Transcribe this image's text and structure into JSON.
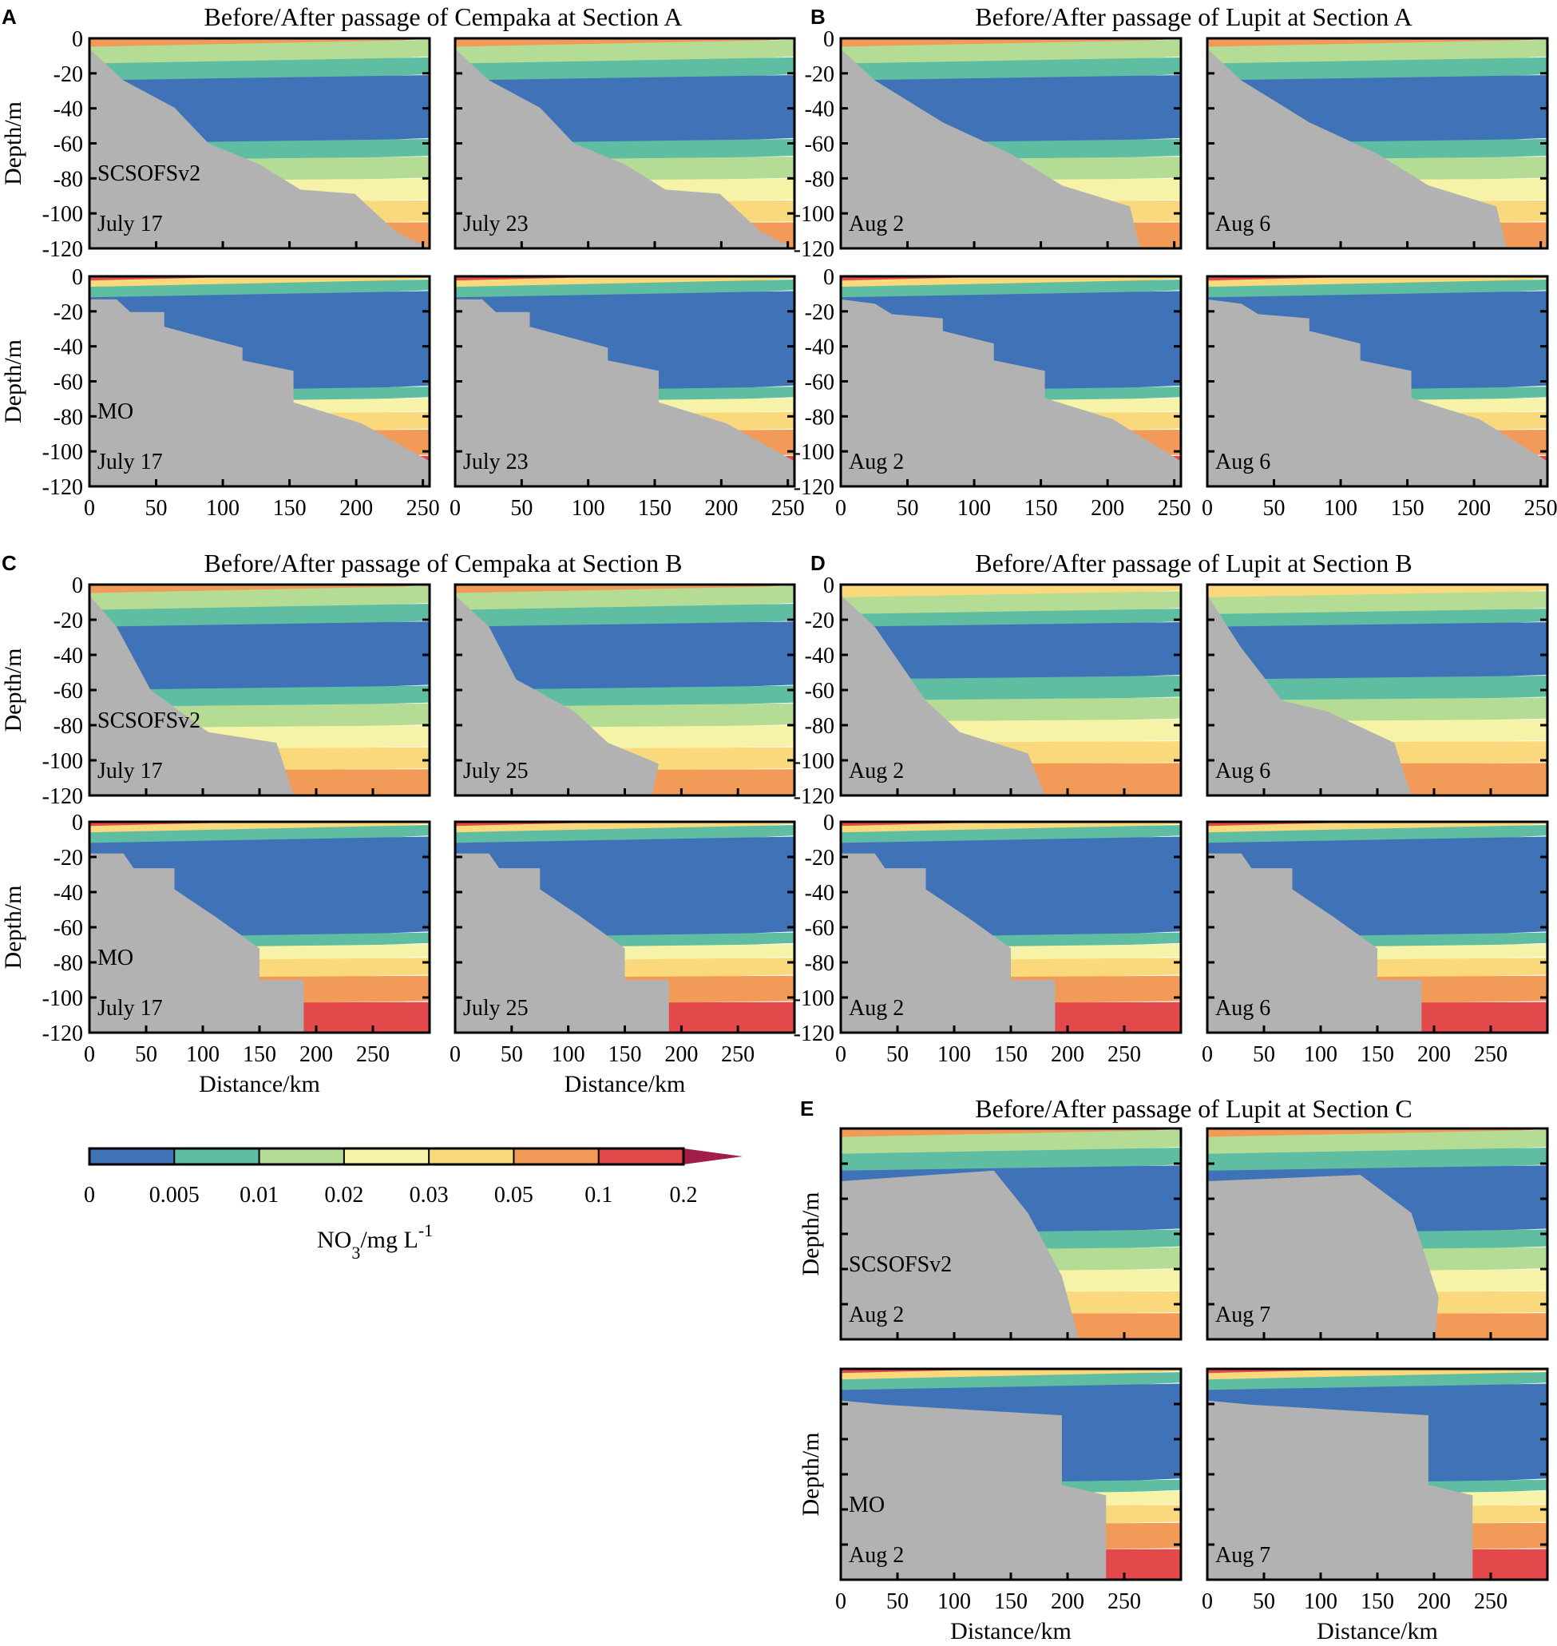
{
  "chart_data": {
    "type": "contour-section",
    "variable": "NO3",
    "colorbar": {
      "levels": [
        "0",
        "0.005",
        "0.01",
        "0.02",
        "0.03",
        "0.05",
        "0.1",
        "0.2"
      ],
      "colors": [
        "#3f72b6",
        "#5fbda1",
        "#b5dc95",
        "#f6f3a8",
        "#fad97d",
        "#f29b58",
        "#e3494a"
      ],
      "extend_color": "#a11d48",
      "label_main": "NO",
      "label_sub": "3",
      "label_unit": "/mg L",
      "label_sup": "-1"
    },
    "axes": {
      "ylabel": "Depth/m",
      "xlabel": "Distance/km",
      "depth_ticks": [
        "0",
        "-20",
        "-40",
        "-60",
        "-80",
        "-100",
        "-120"
      ],
      "dist_ticks_250": [
        "0",
        "50",
        "100",
        "150",
        "200",
        "250"
      ],
      "dist_ticks_300": [
        "0",
        "50",
        "100",
        "150",
        "200",
        "250"
      ]
    },
    "groups": [
      {
        "id": "A",
        "title": "Before/After passage of Cempaka at Section A",
        "xmax": 255,
        "ymin": -120,
        "panels": [
          {
            "model": "SCSOFSv2",
            "date": "July 17"
          },
          {
            "model": "",
            "date": "July 23"
          },
          {
            "model": "MO",
            "date": "July 17"
          },
          {
            "model": "",
            "date": "July 23"
          }
        ]
      },
      {
        "id": "B",
        "title": "Before/After passage of Lupit at Section A",
        "xmax": 255,
        "ymin": -120,
        "panels": [
          {
            "model": "",
            "date": "Aug 2"
          },
          {
            "model": "",
            "date": "Aug 6"
          },
          {
            "model": "",
            "date": "Aug 2"
          },
          {
            "model": "",
            "date": "Aug 6"
          }
        ]
      },
      {
        "id": "C",
        "title": "Before/After passage of Cempaka at Section B",
        "xmax": 300,
        "ymin": -120,
        "panels": [
          {
            "model": "SCSOFSv2",
            "date": "July 17"
          },
          {
            "model": "",
            "date": "July 25"
          },
          {
            "model": "MO",
            "date": "July 17"
          },
          {
            "model": "",
            "date": "July 25"
          }
        ]
      },
      {
        "id": "D",
        "title": "Before/After passage of Lupit at Section B",
        "xmax": 300,
        "ymin": -120,
        "panels": [
          {
            "model": "",
            "date": "Aug 2"
          },
          {
            "model": "",
            "date": "Aug 6"
          },
          {
            "model": "",
            "date": "Aug 2"
          },
          {
            "model": "",
            "date": "Aug 6"
          }
        ]
      },
      {
        "id": "E",
        "title": "Before/After passage of Lupit at Section C",
        "xmax": 300,
        "ymin": -120,
        "panels": [
          {
            "model": "SCSOFSv2",
            "date": "Aug 2"
          },
          {
            "model": "",
            "date": "Aug 7"
          },
          {
            "model": "MO",
            "date": "Aug 2"
          },
          {
            "model": "",
            "date": "Aug 7"
          }
        ]
      }
    ]
  }
}
